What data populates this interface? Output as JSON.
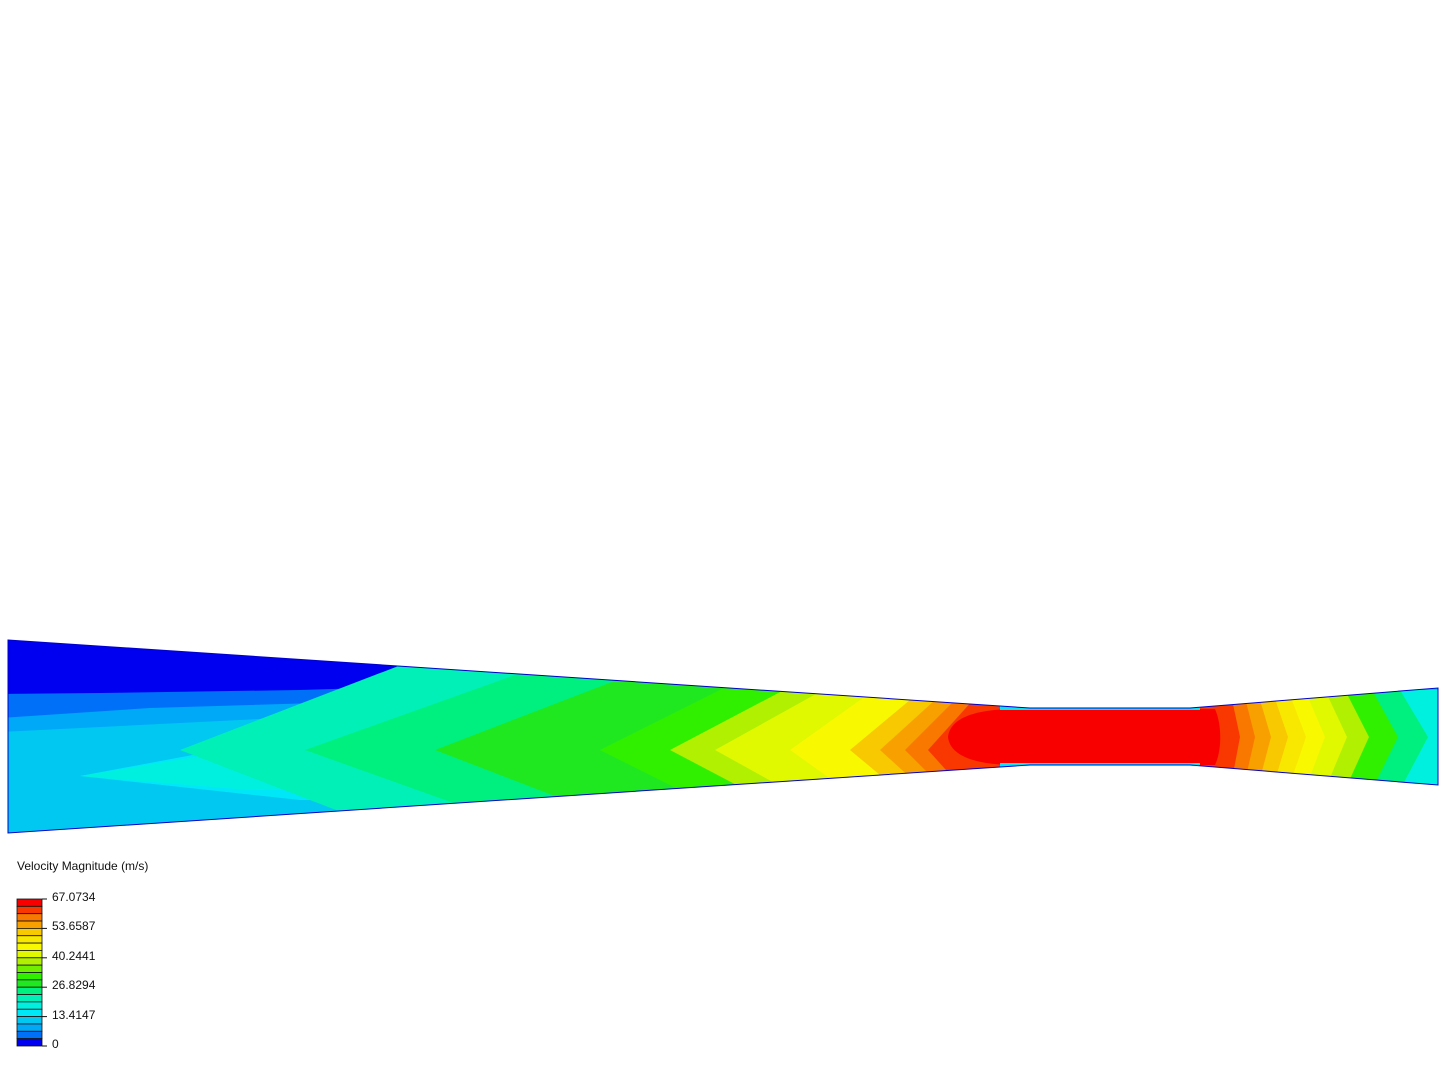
{
  "legend": {
    "title": "Velocity Magnitude (m/s)",
    "ticks": [
      "67.0734",
      "53.6587",
      "40.2441",
      "26.8294",
      "13.4147",
      "0"
    ],
    "range": [
      0,
      67.0734
    ],
    "colors": [
      "#f80000",
      "#f83800",
      "#f87800",
      "#f8a000",
      "#f8c800",
      "#f8e800",
      "#f8f800",
      "#e0f800",
      "#b0f000",
      "#70f000",
      "#30f000",
      "#20e820",
      "#00f080",
      "#00f0b8",
      "#00f0e0",
      "#00e8f8",
      "#00c8f0",
      "#00a8f8",
      "#0070f8",
      "#0000f0"
    ]
  },
  "field": {
    "quantity": "velocity magnitude",
    "colormap": "rainbow"
  }
}
